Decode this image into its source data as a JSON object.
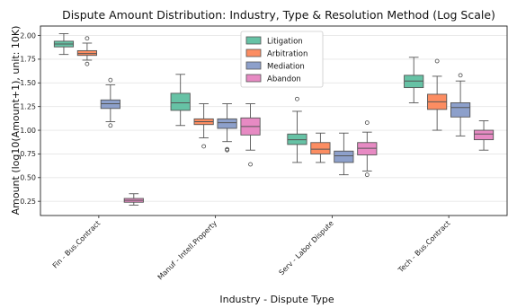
{
  "chart_data": {
    "type": "boxplot",
    "title": "Dispute Amount Distribution: Industry, Type & Resolution Method (Log Scale)",
    "xlabel": "Industry - Dispute Type",
    "ylabel": "Amount (log10(Amount+1), unit: 10K)",
    "ylim": [
      0.1,
      2.1
    ],
    "yticks": [
      "0.25",
      "0.50",
      "0.75",
      "1.00",
      "1.25",
      "1.50",
      "1.75",
      "2.00"
    ],
    "grid": true,
    "legend_position": "top-center",
    "categories": [
      "Fin - Bus.Contract",
      "Manuf - Intell.Property",
      "Serv - Labor Dispute",
      "Tech - Bus.Contract"
    ],
    "series": [
      {
        "name": "Litigation",
        "color": "#66c2a5",
        "boxes": [
          {
            "whislo": 1.8,
            "q1": 1.88,
            "med": 1.91,
            "q3": 1.94,
            "whishi": 2.02,
            "fliers": []
          },
          {
            "whislo": 1.05,
            "q1": 1.21,
            "med": 1.29,
            "q3": 1.39,
            "whishi": 1.59,
            "fliers": []
          },
          {
            "whislo": 0.66,
            "q1": 0.85,
            "med": 0.9,
            "q3": 0.96,
            "whishi": 1.2,
            "fliers": [
              1.33
            ]
          },
          {
            "whislo": 1.29,
            "q1": 1.45,
            "med": 1.52,
            "q3": 1.58,
            "whishi": 1.77,
            "fliers": []
          }
        ]
      },
      {
        "name": "Arbitration",
        "color": "#fc8d62",
        "boxes": [
          {
            "whislo": 1.74,
            "q1": 1.79,
            "med": 1.81,
            "q3": 1.84,
            "whishi": 1.92,
            "fliers": [
              1.97,
              1.7
            ]
          },
          {
            "whislo": 0.92,
            "q1": 1.06,
            "med": 1.09,
            "q3": 1.12,
            "whishi": 1.28,
            "fliers": [
              0.83
            ]
          },
          {
            "whislo": 0.66,
            "q1": 0.75,
            "med": 0.8,
            "q3": 0.87,
            "whishi": 0.97,
            "fliers": []
          },
          {
            "whislo": 1.0,
            "q1": 1.22,
            "med": 1.3,
            "q3": 1.38,
            "whishi": 1.57,
            "fliers": [
              1.73
            ]
          }
        ]
      },
      {
        "name": "Mediation",
        "color": "#8da0cb",
        "boxes": [
          {
            "whislo": 1.09,
            "q1": 1.23,
            "med": 1.28,
            "q3": 1.32,
            "whishi": 1.48,
            "fliers": [
              1.53,
              1.05
            ]
          },
          {
            "whislo": 0.88,
            "q1": 1.02,
            "med": 1.08,
            "q3": 1.12,
            "whishi": 1.28,
            "fliers": [
              0.8,
              0.79
            ]
          },
          {
            "whislo": 0.53,
            "q1": 0.66,
            "med": 0.73,
            "q3": 0.78,
            "whishi": 0.97,
            "fliers": []
          },
          {
            "whislo": 0.94,
            "q1": 1.14,
            "med": 1.24,
            "q3": 1.29,
            "whishi": 1.52,
            "fliers": [
              1.58
            ]
          }
        ]
      },
      {
        "name": "Abandon",
        "color": "#e78ac3",
        "boxes": [
          {
            "whislo": 0.21,
            "q1": 0.24,
            "med": 0.26,
            "q3": 0.28,
            "whishi": 0.33,
            "fliers": []
          },
          {
            "whislo": 0.79,
            "q1": 0.95,
            "med": 1.04,
            "q3": 1.13,
            "whishi": 1.28,
            "fliers": [
              0.64
            ]
          },
          {
            "whislo": 0.57,
            "q1": 0.74,
            "med": 0.81,
            "q3": 0.87,
            "whishi": 0.98,
            "fliers": [
              1.08,
              0.53
            ]
          },
          {
            "whislo": 0.79,
            "q1": 0.9,
            "med": 0.96,
            "q3": 1.0,
            "whishi": 1.1,
            "fliers": []
          }
        ]
      }
    ]
  }
}
